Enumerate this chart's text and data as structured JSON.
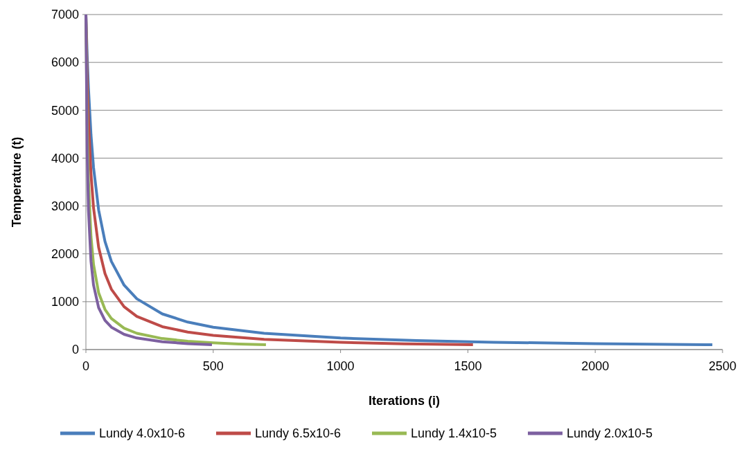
{
  "chart_data": {
    "type": "line",
    "xlabel": "Iterations (i)",
    "ylabel": "Temperature (t)",
    "xlim": [
      0,
      2500
    ],
    "xticks": [
      0,
      500,
      1000,
      1500,
      2000,
      2500
    ],
    "ylim": [
      0,
      7000
    ],
    "yticks": [
      0,
      1000,
      2000,
      3000,
      4000,
      5000,
      6000,
      7000
    ],
    "grid": "y",
    "legend": "bottom",
    "marker": "none",
    "line_style": "solid",
    "series": [
      {
        "name": "Lundy 4.0x10-6",
        "color": "#4a7ebb",
        "x": [
          0,
          5,
          10,
          20,
          30,
          50,
          75,
          100,
          150,
          200,
          300,
          400,
          500,
          700,
          1000,
          1300,
          1600,
          2000,
          2460
        ],
        "values": [
          7000,
          6140,
          5469,
          4487,
          3804,
          2917,
          2258,
          1842,
          1346,
          1061,
          745,
          574,
          467,
          340,
          241,
          187,
          153,
          123,
          100
        ]
      },
      {
        "name": "Lundy 6.5x10-6",
        "color": "#be4b48",
        "x": [
          0,
          5,
          10,
          20,
          30,
          50,
          75,
          100,
          150,
          200,
          300,
          400,
          500,
          700,
          1000,
          1250,
          1520
        ],
        "values": [
          7000,
          5703,
          4811,
          3665,
          2960,
          2137,
          1587,
          1261,
          895,
          693,
          478,
          365,
          295,
          213,
          151,
          121,
          100
        ]
      },
      {
        "name": "Lundy 1.4x10-5",
        "color": "#98b954",
        "x": [
          0,
          5,
          10,
          20,
          30,
          50,
          75,
          100,
          150,
          200,
          300,
          400,
          500,
          600,
          707
        ],
        "values": [
          7000,
          4698,
          3535,
          2365,
          1777,
          1186,
          838,
          648,
          446,
          340,
          230,
          174,
          140,
          117,
          100
        ]
      },
      {
        "name": "Lundy 2.0x10-5",
        "color": "#7d60a0",
        "x": [
          0,
          5,
          10,
          20,
          30,
          50,
          75,
          100,
          150,
          200,
          300,
          400,
          495
        ],
        "values": [
          7000,
          4118,
          2917,
          1842,
          1346,
          875,
          609,
          467,
          318,
          241,
          163,
          123,
          100
        ]
      }
    ]
  }
}
